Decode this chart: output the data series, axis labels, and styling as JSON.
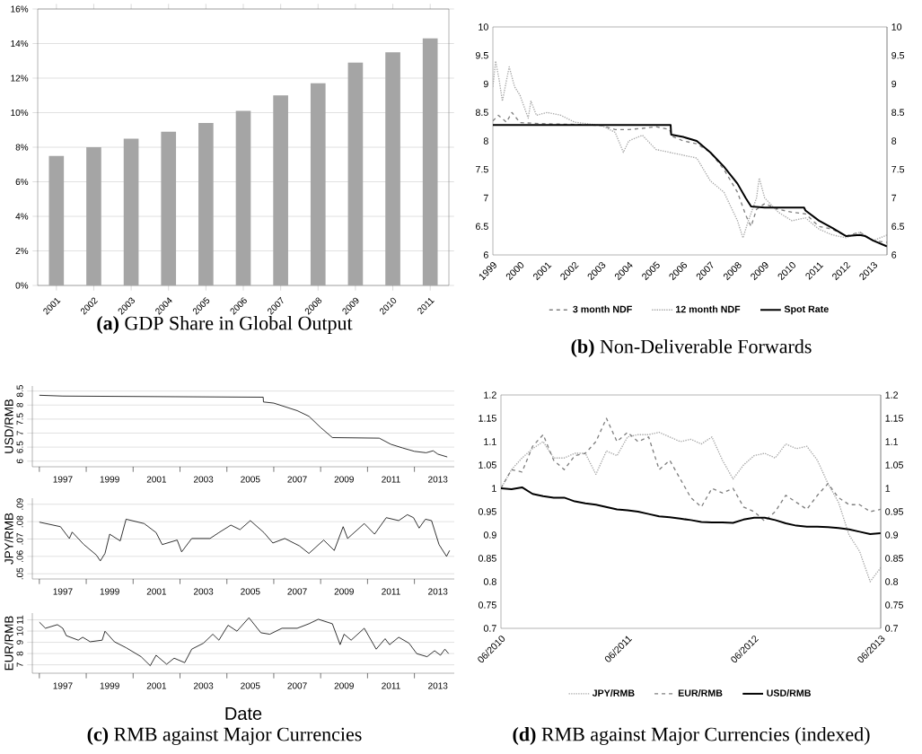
{
  "chart_data": [
    {
      "type": "bar",
      "title": "**(a)** GDP Share in Global Output",
      "categories": [
        "2001",
        "2002",
        "2003",
        "2004",
        "2005",
        "2006",
        "2007",
        "2008",
        "2009",
        "2010",
        "2011"
      ],
      "values": [
        7.5,
        8.0,
        8.5,
        8.9,
        9.4,
        10.1,
        11.0,
        11.7,
        12.9,
        13.5,
        14.3
      ],
      "color": "#a5a5a5",
      "ylim": [
        0,
        16
      ],
      "yticks": [
        {
          "value": 0,
          "label": "0%"
        },
        {
          "value": 2,
          "label": "2%"
        },
        {
          "value": 4,
          "label": "4%"
        },
        {
          "value": 6,
          "label": "6%"
        },
        {
          "value": 8,
          "label": "8%"
        },
        {
          "value": 10,
          "label": "10%"
        },
        {
          "value": 12,
          "label": "12%"
        },
        {
          "value": 14,
          "label": "14%"
        },
        {
          "value": 16,
          "label": "16%"
        }
      ],
      "grid": "y"
    },
    {
      "type": "line",
      "title": "**(b)** Non-Deliverable Forwards",
      "xlim": [
        1999,
        2013.5
      ],
      "xticks": [
        1999,
        2000,
        2001,
        2002,
        2003,
        2004,
        2005,
        2006,
        2007,
        2008,
        2009,
        2010,
        2011,
        2012,
        2013
      ],
      "ylim": [
        6,
        10
      ],
      "yticks": [
        6,
        6.5,
        7,
        7.5,
        8,
        8.5,
        9,
        9.5,
        10
      ],
      "y2lim": [
        6,
        10
      ],
      "y2ticks": [
        6,
        6.5,
        7,
        7.5,
        8,
        8.5,
        9,
        9.5,
        10
      ],
      "legend": "bottom",
      "series": [
        {
          "name": "3 month NDF",
          "color": "#808080",
          "line_style": "dashed",
          "x": [
            1999,
            1999.2,
            1999.5,
            1999.7,
            2000,
            2001,
            2002,
            2003,
            2003.5,
            2004,
            2004.5,
            2005,
            2005.5,
            2005.6,
            2006,
            2006.5,
            2007,
            2007.5,
            2008,
            2008.3,
            2008.5,
            2008.7,
            2009,
            2009.5,
            2010,
            2010.5,
            2011,
            2011.5,
            2012,
            2012.5,
            2013,
            2013.5
          ],
          "values": [
            8.35,
            8.45,
            8.33,
            8.5,
            8.32,
            8.3,
            8.29,
            8.27,
            8.2,
            8.2,
            8.22,
            8.25,
            8.2,
            8.08,
            8.0,
            7.95,
            7.8,
            7.5,
            7.1,
            6.7,
            6.5,
            6.8,
            6.9,
            6.8,
            6.75,
            6.72,
            6.5,
            6.45,
            6.33,
            6.4,
            6.25,
            6.22
          ]
        },
        {
          "name": "12 month NDF",
          "color": "#a6a6a6",
          "line_style": "dotted",
          "x": [
            1999,
            1999.1,
            1999.22,
            1999.35,
            1999.6,
            1999.8,
            2000,
            2000.3,
            2000.4,
            2000.6,
            2001,
            2001.5,
            2002,
            2003,
            2003.5,
            2003.8,
            2004,
            2004.5,
            2005,
            2005.5,
            2006,
            2006.5,
            2007,
            2007.5,
            2008,
            2008.2,
            2008.4,
            2008.7,
            2008.8,
            2009,
            2009.5,
            2010,
            2010.5,
            2011,
            2011.5,
            2012,
            2012.5,
            2013,
            2013.5
          ],
          "values": [
            8.95,
            9.4,
            9.1,
            8.7,
            9.3,
            8.95,
            8.8,
            8.4,
            8.7,
            8.45,
            8.5,
            8.45,
            8.33,
            8.27,
            8.15,
            7.8,
            8.0,
            8.1,
            7.85,
            7.8,
            7.75,
            7.7,
            7.3,
            7.1,
            6.6,
            6.3,
            6.6,
            7.0,
            7.35,
            7.0,
            6.75,
            6.6,
            6.65,
            6.45,
            6.35,
            6.3,
            6.4,
            6.25,
            6.35
          ]
        },
        {
          "name": "Spot Rate",
          "color": "#000000",
          "line_style": "solid",
          "x": [
            1999,
            2005.54,
            2005.56,
            2006,
            2006.5,
            2007,
            2007.5,
            2008,
            2008.3,
            2008.5,
            2009,
            2010.45,
            2010.5,
            2011,
            2011.5,
            2012,
            2012.5,
            2012.7,
            2013,
            2013.5
          ],
          "values": [
            8.28,
            8.28,
            8.11,
            8.07,
            8.0,
            7.8,
            7.55,
            7.25,
            7.0,
            6.85,
            6.83,
            6.83,
            6.78,
            6.6,
            6.47,
            6.33,
            6.35,
            6.33,
            6.25,
            6.15
          ]
        }
      ]
    },
    {
      "type": "line",
      "ylabel": "USD/RMB",
      "color": "#000000",
      "line_style": "solid",
      "grid": "y",
      "xlim": [
        1995.7,
        2013.7
      ],
      "xticks": [
        {
          "value": 1996,
          "label": null
        },
        {
          "value": 1997,
          "label": "1997"
        },
        {
          "value": 1998,
          "label": null
        },
        {
          "value": 1999,
          "label": "1999"
        },
        {
          "value": 2000,
          "label": null
        },
        {
          "value": 2001,
          "label": "2001"
        },
        {
          "value": 2002,
          "label": null
        },
        {
          "value": 2003,
          "label": "2003"
        },
        {
          "value": 2004,
          "label": null
        },
        {
          "value": 2005,
          "label": "2005"
        },
        {
          "value": 2006,
          "label": null
        },
        {
          "value": 2007,
          "label": "2007"
        },
        {
          "value": 2008,
          "label": null
        },
        {
          "value": 2009,
          "label": "2009"
        },
        {
          "value": 2010,
          "label": null
        },
        {
          "value": 2011,
          "label": "2011"
        },
        {
          "value": 2012,
          "label": null
        },
        {
          "value": 2013,
          "label": "2013"
        }
      ],
      "ylim": [
        5.8,
        8.68
      ],
      "yticks": [
        6,
        6.5,
        7,
        7.5,
        8,
        8.5
      ],
      "x": [
        1996,
        1997,
        2005.55,
        2005.56,
        2006,
        2007,
        2007.5,
        2008,
        2008.5,
        2010.5,
        2011,
        2011.5,
        2012,
        2012.5,
        2012.8,
        2013,
        2013.4
      ],
      "values": [
        8.35,
        8.32,
        8.28,
        8.11,
        8.07,
        7.8,
        7.6,
        7.2,
        6.84,
        6.82,
        6.6,
        6.47,
        6.35,
        6.3,
        6.37,
        6.25,
        6.15
      ]
    },
    {
      "type": "line",
      "ylabel": "JPY/RMB",
      "color": "#000000",
      "line_style": "solid",
      "grid": "y",
      "xlim": [
        1995.7,
        2013.7
      ],
      "xticks": [
        {
          "value": 1996,
          "label": null
        },
        {
          "value": 1997,
          "label": "1997"
        },
        {
          "value": 1998,
          "label": null
        },
        {
          "value": 1999,
          "label": "1999"
        },
        {
          "value": 2000,
          "label": null
        },
        {
          "value": 2001,
          "label": "2001"
        },
        {
          "value": 2002,
          "label": null
        },
        {
          "value": 2003,
          "label": "2003"
        },
        {
          "value": 2004,
          "label": null
        },
        {
          "value": 2005,
          "label": "2005"
        },
        {
          "value": 2006,
          "label": null
        },
        {
          "value": 2007,
          "label": "2007"
        },
        {
          "value": 2008,
          "label": null
        },
        {
          "value": 2009,
          "label": "2009"
        },
        {
          "value": 2010,
          "label": null
        },
        {
          "value": 2011,
          "label": "2011"
        },
        {
          "value": 2012,
          "label": null
        },
        {
          "value": 2013,
          "label": "2013"
        }
      ],
      "ylim": [
        0.047,
        0.0935
      ],
      "yticks": [
        {
          "value": 0.05,
          "label": ".05"
        },
        {
          "value": 0.06,
          "label": ".06"
        },
        {
          "value": 0.07,
          "label": ".07"
        },
        {
          "value": 0.08,
          "label": ".08"
        },
        {
          "value": 0.09,
          "label": ".09"
        }
      ],
      "x": [
        1996.0,
        1996.9,
        1997.28,
        1997.4,
        1997.9,
        1998.43,
        1998.6,
        1998.8,
        1999.0,
        1999.45,
        1999.7,
        2000.47,
        2000.98,
        2001.24,
        2001.88,
        2002.07,
        2002.5,
        2003.28,
        2003.66,
        2004.17,
        2004.56,
        2005.0,
        2005.58,
        2005.96,
        2006.47,
        2007.1,
        2007.5,
        2008.13,
        2008.58,
        2008.96,
        2009.15,
        2009.86,
        2010.3,
        2010.8,
        2011.33,
        2011.7,
        2011.96,
        2012.2,
        2012.47,
        2012.73,
        2013.05,
        2013.37,
        2013.5
      ],
      "values": [
        0.0797,
        0.0771,
        0.0703,
        0.074,
        0.0668,
        0.0608,
        0.0574,
        0.0617,
        0.0728,
        0.0689,
        0.0814,
        0.0789,
        0.0737,
        0.0668,
        0.0694,
        0.0626,
        0.0703,
        0.0703,
        0.0737,
        0.078,
        0.0754,
        0.0806,
        0.0737,
        0.0677,
        0.0703,
        0.066,
        0.0617,
        0.0694,
        0.0634,
        0.0771,
        0.0703,
        0.0789,
        0.0728,
        0.0823,
        0.0806,
        0.084,
        0.0823,
        0.0763,
        0.0814,
        0.0806,
        0.0668,
        0.06,
        0.0634
      ]
    },
    {
      "type": "line",
      "title": "**(c)** RMB against Major Currencies",
      "xlabel": "Date",
      "ylabel": "EUR/RMB",
      "color": "#000000",
      "line_style": "solid",
      "grid": "y",
      "xlim": [
        1995.7,
        2013.7
      ],
      "xticks": [
        {
          "value": 1996,
          "label": null
        },
        {
          "value": 1997,
          "label": "1997"
        },
        {
          "value": 1998,
          "label": null
        },
        {
          "value": 1999,
          "label": "1999"
        },
        {
          "value": 2000,
          "label": null
        },
        {
          "value": 2001,
          "label": "2001"
        },
        {
          "value": 2002,
          "label": null
        },
        {
          "value": 2003,
          "label": "2003"
        },
        {
          "value": 2004,
          "label": null
        },
        {
          "value": 2005,
          "label": "2005"
        },
        {
          "value": 2006,
          "label": null
        },
        {
          "value": 2007,
          "label": "2007"
        },
        {
          "value": 2008,
          "label": null
        },
        {
          "value": 2009,
          "label": "2009"
        },
        {
          "value": 2010,
          "label": null
        },
        {
          "value": 2011,
          "label": "2011"
        },
        {
          "value": 2012,
          "label": null
        },
        {
          "value": 2013,
          "label": "2013"
        }
      ],
      "ylim": [
        6.25,
        11.6
      ],
      "yticks": [
        7,
        8,
        9,
        10,
        11
      ],
      "x": [
        1996.0,
        1996.26,
        1996.77,
        1997.0,
        1997.15,
        1997.66,
        1997.85,
        1998.17,
        1998.68,
        1998.8,
        1999.2,
        1999.7,
        2000.34,
        2000.73,
        2000.98,
        2001.43,
        2001.75,
        2002.2,
        2002.5,
        2003.0,
        2003.4,
        2003.66,
        2004.05,
        2004.43,
        2004.94,
        2005.45,
        2005.83,
        2006.35,
        2007.0,
        2007.5,
        2007.9,
        2008.5,
        2008.83,
        2009.0,
        2009.3,
        2009.86,
        2010.37,
        2010.75,
        2010.94,
        2011.33,
        2011.77,
        2012.1,
        2012.54,
        2012.86,
        2013.11,
        2013.3,
        2013.46
      ],
      "values": [
        10.79,
        10.25,
        10.57,
        10.25,
        9.59,
        9.19,
        9.45,
        9.05,
        9.19,
        9.99,
        9.05,
        8.52,
        7.72,
        6.92,
        7.85,
        7.05,
        7.59,
        7.19,
        8.39,
        8.92,
        9.72,
        9.19,
        10.52,
        9.99,
        11.19,
        9.85,
        9.72,
        10.25,
        10.25,
        10.65,
        11.05,
        10.65,
        8.79,
        9.72,
        9.19,
        10.25,
        8.39,
        9.32,
        8.79,
        9.45,
        8.92,
        7.99,
        7.72,
        8.25,
        7.85,
        8.39,
        7.99
      ]
    },
    {
      "type": "line",
      "title": "**(d)** RMB against Major Currencies (indexed)",
      "xlim": [
        "2010-06",
        "2013-06"
      ],
      "xticks": [
        {
          "value": "2010-06",
          "label": "06/2010"
        },
        {
          "value": "2011-06",
          "label": "06/2011"
        },
        {
          "value": "2012-06",
          "label": "06/2012"
        },
        {
          "value": "2013-06",
          "label": "06/2013"
        }
      ],
      "ylim": [
        0.7,
        1.2
      ],
      "yticks": [
        0.7,
        0.75,
        0.8,
        0.85,
        0.9,
        0.95,
        1,
        1.05,
        1.1,
        1.15,
        1.2
      ],
      "y2lim": [
        0.7,
        1.2
      ],
      "y2ticks": [
        0.7,
        0.75,
        0.8,
        0.85,
        0.9,
        0.95,
        1,
        1.05,
        1.1,
        1.15,
        1.2
      ],
      "legend": "bottom",
      "x": [
        "2010-06",
        "2010-07",
        "2010-08",
        "2010-09",
        "2010-10",
        "2010-11",
        "2010-12",
        "2011-01",
        "2011-02",
        "2011-03",
        "2011-04",
        "2011-05",
        "2011-06",
        "2011-07",
        "2011-08",
        "2011-09",
        "2011-10",
        "2011-11",
        "2011-12",
        "2012-01",
        "2012-02",
        "2012-03",
        "2012-04",
        "2012-05",
        "2012-06",
        "2012-07",
        "2012-08",
        "2012-09",
        "2012-10",
        "2012-11",
        "2012-12",
        "2013-01",
        "2013-02",
        "2013-03",
        "2013-04",
        "2013-05",
        "2013-06"
      ],
      "series": [
        {
          "name": "JPY/RMB",
          "color": "#a6a6a6",
          "line_style": "dotted",
          "values": [
            1.0,
            1.04,
            1.065,
            1.085,
            1.1,
            1.065,
            1.065,
            1.075,
            1.075,
            1.03,
            1.08,
            1.07,
            1.11,
            1.115,
            1.115,
            1.12,
            1.11,
            1.1,
            1.105,
            1.095,
            1.11,
            1.06,
            1.02,
            1.05,
            1.07,
            1.075,
            1.065,
            1.095,
            1.085,
            1.09,
            1.06,
            1.01,
            0.97,
            0.9,
            0.865,
            0.8,
            0.83
          ]
        },
        {
          "name": "EUR/RMB",
          "color": "#7f7f7f",
          "line_style": "dashed",
          "values": [
            1.0,
            1.04,
            1.035,
            1.09,
            1.115,
            1.06,
            1.04,
            1.07,
            1.075,
            1.1,
            1.15,
            1.1,
            1.12,
            1.1,
            1.11,
            1.04,
            1.06,
            1.02,
            0.98,
            0.96,
            1.0,
            0.99,
            1.0,
            0.96,
            0.95,
            0.93,
            0.95,
            0.985,
            0.97,
            0.955,
            0.985,
            1.01,
            0.98,
            0.965,
            0.965,
            0.95,
            0.955
          ]
        },
        {
          "name": "USD/RMB",
          "color": "#000000",
          "line_style": "solid",
          "values": [
            1.0,
            0.998,
            1.002,
            0.988,
            0.983,
            0.98,
            0.98,
            0.972,
            0.968,
            0.965,
            0.96,
            0.955,
            0.953,
            0.95,
            0.945,
            0.94,
            0.938,
            0.935,
            0.932,
            0.928,
            0.927,
            0.927,
            0.926,
            0.933,
            0.937,
            0.937,
            0.932,
            0.925,
            0.92,
            0.918,
            0.918,
            0.917,
            0.915,
            0.912,
            0.907,
            0.902,
            0.904
          ]
        }
      ]
    }
  ]
}
